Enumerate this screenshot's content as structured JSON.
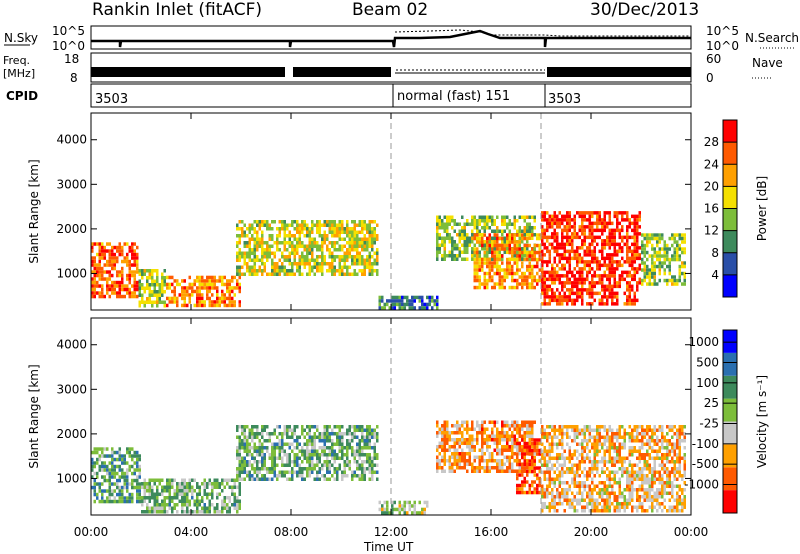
{
  "header": {
    "title": "Rankin Inlet (fitACF)",
    "beam": "Beam 02",
    "date": "30/Dec/2013"
  },
  "panels": {
    "noise": {
      "left_label": "N.Sky",
      "left_ticks": [
        "10^5",
        "10^0"
      ],
      "right_label": "N.Search",
      "right_ticks": [
        "10^5",
        "10^0"
      ]
    },
    "freq": {
      "left_label_top": "Freq.",
      "left_label_bottom": "[MHz]",
      "left_ticks": [
        "18",
        "8"
      ],
      "right_label": "Nave",
      "right_ticks": [
        "60",
        "0"
      ]
    },
    "cpid": {
      "label": "CPID",
      "segments": [
        "3503",
        "normal (fast) 151",
        "3503"
      ]
    }
  },
  "colors": {
    "power_scale": [
      "#0000ff",
      "#2a4fa8",
      "#3d8a5c",
      "#7dbd3a",
      "#f5e000",
      "#ffa000",
      "#ff5a00",
      "#ff0000"
    ],
    "velocity_scale": [
      "#ff0000",
      "#ff5a00",
      "#ffa000",
      "#c8c8c8",
      "#7dbd3a",
      "#3d8a5c",
      "#2a6fb0",
      "#0000ff"
    ]
  },
  "chart_data": [
    {
      "type": "heatmap",
      "title": "Power",
      "xlabel": "",
      "ylabel": "Slant Range [km]",
      "x_ticks": [
        "00:00",
        "04:00",
        "08:00",
        "12:00",
        "16:00",
        "20:00",
        "00:00"
      ],
      "xlim_hours": [
        0,
        24
      ],
      "y_ticks": [
        1000,
        2000,
        3000,
        4000
      ],
      "ylim_km": [
        180,
        4600
      ],
      "colorbar": {
        "label": "Power [dB]",
        "ticks": [
          "28",
          "24",
          "20",
          "16",
          "12",
          "8",
          "4"
        ],
        "range": [
          0,
          30
        ]
      },
      "regions": [
        {
          "start_hr": 0.0,
          "end_hr": 1.9,
          "range_km": [
            500,
            1700
          ],
          "value": 24
        },
        {
          "start_hr": 1.9,
          "end_hr": 3.0,
          "range_km": [
            250,
            1100
          ],
          "value": 14
        },
        {
          "start_hr": 3.0,
          "end_hr": 6.0,
          "range_km": [
            250,
            950
          ],
          "value": 22
        },
        {
          "start_hr": 5.8,
          "end_hr": 11.5,
          "range_km": [
            1000,
            2200
          ],
          "value": 16
        },
        {
          "start_hr": 11.5,
          "end_hr": 13.8,
          "range_km": [
            200,
            500
          ],
          "value": 8
        },
        {
          "start_hr": 13.8,
          "end_hr": 17.8,
          "range_km": [
            1300,
            2300
          ],
          "value": 14
        },
        {
          "start_hr": 15.3,
          "end_hr": 18.0,
          "range_km": [
            700,
            1900
          ],
          "value": 22
        },
        {
          "start_hr": 18.0,
          "end_hr": 22.0,
          "range_km": [
            350,
            2400
          ],
          "value": 27
        },
        {
          "start_hr": 22.0,
          "end_hr": 23.8,
          "range_km": [
            800,
            1900
          ],
          "value": 14
        }
      ]
    },
    {
      "type": "heatmap",
      "title": "Velocity",
      "xlabel": "Time UT",
      "ylabel": "Slant Range [km]",
      "x_ticks": [
        "00:00",
        "04:00",
        "08:00",
        "12:00",
        "16:00",
        "20:00",
        "00:00"
      ],
      "xlim_hours": [
        0,
        24
      ],
      "y_ticks": [
        1000,
        2000,
        3000,
        4000
      ],
      "ylim_km": [
        180,
        4600
      ],
      "colorbar": {
        "label": "Velocity [m s⁻¹]",
        "ticks": [
          "1000",
          "500",
          "100",
          "25",
          "-25",
          "-100",
          "-500",
          "-1000"
        ],
        "range": [
          -1000,
          1000
        ]
      },
      "regions": [
        {
          "start_hr": 0.0,
          "end_hr": 2.0,
          "range_km": [
            500,
            1700
          ],
          "value": 300
        },
        {
          "start_hr": 2.0,
          "end_hr": 6.0,
          "range_km": [
            250,
            1000
          ],
          "value": 150
        },
        {
          "start_hr": 5.8,
          "end_hr": 11.5,
          "range_km": [
            1000,
            2200
          ],
          "value": 200
        },
        {
          "start_hr": 11.5,
          "end_hr": 13.5,
          "range_km": [
            200,
            500
          ],
          "value": 50
        },
        {
          "start_hr": 13.8,
          "end_hr": 17.8,
          "range_km": [
            1200,
            2300
          ],
          "value": -400
        },
        {
          "start_hr": 17.0,
          "end_hr": 18.0,
          "range_km": [
            700,
            1900
          ],
          "value": -700
        },
        {
          "start_hr": 18.0,
          "end_hr": 23.8,
          "range_km": [
            300,
            2200
          ],
          "value": -300
        }
      ]
    }
  ]
}
